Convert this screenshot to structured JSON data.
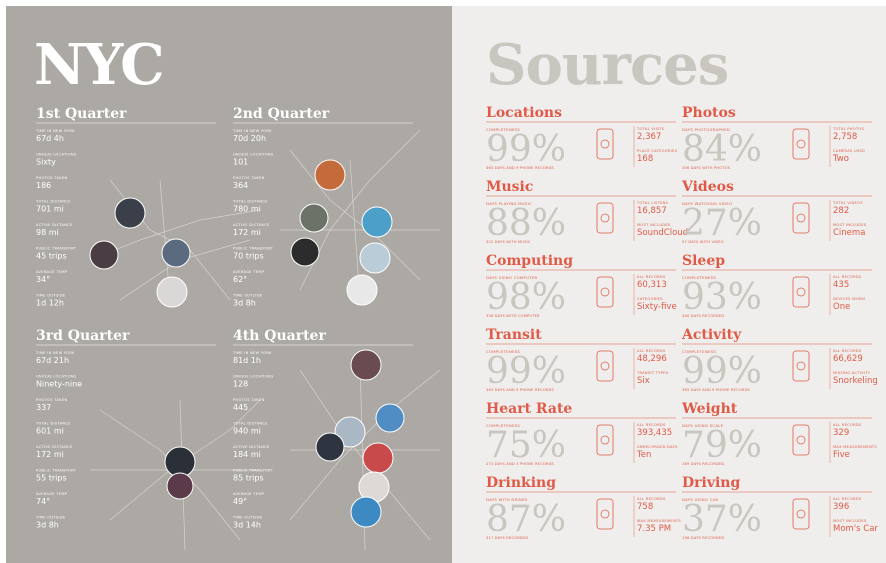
{
  "left": {
    "title": "NYC",
    "quarters": [
      {
        "title": "1st Quarter",
        "stats": [
          {
            "label": "TIME IN NEW YORK",
            "value": "67d 4h"
          },
          {
            "label": "UNIQUE LOCATIONS",
            "value": "Sixty"
          },
          {
            "label": "PHOTOS TAKEN",
            "value": "186"
          },
          {
            "label": "TOTAL DISTANCE",
            "value": "701 mi"
          },
          {
            "label": "ACTIVE DISTANCE",
            "value": "98 mi"
          },
          {
            "label": "PUBLIC TRANSPORT",
            "value": "45 trips"
          },
          {
            "label": "AVERAGE TEMP",
            "value": "34°"
          },
          {
            "label": "TIME OUTSIDE",
            "value": "1d 12h"
          }
        ]
      },
      {
        "title": "2nd Quarter",
        "stats": [
          {
            "label": "TIME IN NEW YORK",
            "value": "70d 20h"
          },
          {
            "label": "UNIQUE LOCATIONS",
            "value": "101"
          },
          {
            "label": "PHOTOS TAKEN",
            "value": "364"
          },
          {
            "label": "TOTAL DISTANCE",
            "value": "780 mi"
          },
          {
            "label": "ACTIVE DISTANCE",
            "value": "172 mi"
          },
          {
            "label": "PUBLIC TRANSPORT",
            "value": "70 trips"
          },
          {
            "label": "AVERAGE TEMP",
            "value": "62°"
          },
          {
            "label": "TIME OUTSIDE",
            "value": "3d 8h"
          }
        ]
      },
      {
        "title": "3rd Quarter",
        "stats": [
          {
            "label": "TIME IN NEW YORK",
            "value": "67d 21h"
          },
          {
            "label": "UNIQUE LOCATIONS",
            "value": "Ninety-nine"
          },
          {
            "label": "PHOTOS TAKEN",
            "value": "337"
          },
          {
            "label": "TOTAL DISTANCE",
            "value": "601 mi"
          },
          {
            "label": "ACTIVE DISTANCE",
            "value": "172 mi"
          },
          {
            "label": "PUBLIC TRANSPORT",
            "value": "55 trips"
          },
          {
            "label": "AVERAGE TEMP",
            "value": "74°"
          },
          {
            "label": "TIME OUTSIDE",
            "value": "3d 8h"
          }
        ]
      },
      {
        "title": "4th Quarter",
        "stats": [
          {
            "label": "TIME IN NEW YORK",
            "value": "81d 1h"
          },
          {
            "label": "UNIQUE LOCATIONS",
            "value": "128"
          },
          {
            "label": "PHOTOS TAKEN",
            "value": "445"
          },
          {
            "label": "TOTAL DISTANCE",
            "value": "940 mi"
          },
          {
            "label": "ACTIVE DISTANCE",
            "value": "184 mi"
          },
          {
            "label": "PUBLIC TRANSPORT",
            "value": "85 trips"
          },
          {
            "label": "AVERAGE TEMP",
            "value": "49°"
          },
          {
            "label": "TIME OUTSIDE",
            "value": "3d 14h"
          }
        ]
      }
    ]
  },
  "right": {
    "title": "Sources",
    "sources": [
      {
        "title": "Locations",
        "label": "COMPLETENESS",
        "percent": "99%",
        "note": "365 DAYS AND 9 PHONE RECORDS",
        "stats": [
          {
            "label": "TOTAL VISITS",
            "value": "2,367"
          },
          {
            "label": "PLACE CATEGORIES",
            "value": "168"
          }
        ]
      },
      {
        "title": "Photos",
        "label": "DAYS PHOTOGRAPHED",
        "percent": "84%",
        "note": "306 DAYS WITH PHOTOS",
        "stats": [
          {
            "label": "TOTAL PHOTOS",
            "value": "2,758"
          },
          {
            "label": "CAMERAS USED",
            "value": "Two"
          }
        ]
      },
      {
        "title": "Music",
        "label": "DAYS PLAYING MUSIC",
        "percent": "88%",
        "note": "322 DAYS WITH MUSIC",
        "stats": [
          {
            "label": "TOTAL LISTENS",
            "value": "16,857"
          },
          {
            "label": "MOST INCLUDES",
            "value": "SoundCloud"
          }
        ]
      },
      {
        "title": "Videos",
        "label": "DAYS WATCHING VIDEO",
        "percent": "27%",
        "note": "97 DAYS WITH VIDEO",
        "stats": [
          {
            "label": "TOTAL VIDEOS",
            "value": "282"
          },
          {
            "label": "MOST INCLUDES",
            "value": "Cinema"
          }
        ]
      },
      {
        "title": "Computing",
        "label": "DAYS USING COMPUTER",
        "percent": "98%",
        "note": "358 DAYS WITH COMPUTER",
        "stats": [
          {
            "label": "ALL RECORDS",
            "value": "60,313"
          },
          {
            "label": "CATEGORIES",
            "value": "Sixty-five"
          }
        ]
      },
      {
        "title": "Sleep",
        "label": "COMPLETENESS",
        "percent": "93%",
        "note": "340 DAYS RECORDED",
        "stats": [
          {
            "label": "ALL RECORDS",
            "value": "435"
          },
          {
            "label": "DEVICES WORN",
            "value": "One"
          }
        ]
      },
      {
        "title": "Transit",
        "label": "COMPLETENESS",
        "percent": "99%",
        "note": "365 DAYS AND 9 PHONE RECORDS",
        "stats": [
          {
            "label": "ALL RECORDS",
            "value": "48,296"
          },
          {
            "label": "TRANSIT TYPES",
            "value": "Six"
          }
        ]
      },
      {
        "title": "Activity",
        "label": "COMPLETENESS",
        "percent": "99%",
        "note": "365 DAYS AND 9 PHONE RECORDS",
        "stats": [
          {
            "label": "ALL RECORDS",
            "value": "66,629"
          },
          {
            "label": "MISSING ACTIVITY",
            "value": "Snorkeling"
          }
        ]
      },
      {
        "title": "Heart Rate",
        "label": "COMPLETENESS",
        "percent": "75%",
        "note": "273 DAYS AND 3 PHONE RECORDS",
        "stats": [
          {
            "label": "ALL RECORDS",
            "value": "393,435"
          },
          {
            "label": "UNRECORDED DAYS",
            "value": "Ten"
          }
        ]
      },
      {
        "title": "Weight",
        "label": "DAYS USING SCALE",
        "percent": "79%",
        "note": "289 DAYS RECORDED",
        "stats": [
          {
            "label": "ALL RECORDS",
            "value": "329"
          },
          {
            "label": "MAX MEASUREMENTS",
            "value": "Five"
          }
        ]
      },
      {
        "title": "Drinking",
        "label": "DAYS WITH DRINKS",
        "percent": "87%",
        "note": "317 DAYS RECORDED",
        "stats": [
          {
            "label": "ALL RECORDS",
            "value": "758"
          },
          {
            "label": "MAX MEASUREMENTS",
            "value": "7.35 PM"
          }
        ]
      },
      {
        "title": "Driving",
        "label": "DAYS USING CAR",
        "percent": "37%",
        "note": "136 DAYS RECORDED",
        "stats": [
          {
            "label": "ALL RECORDS",
            "value": "396"
          },
          {
            "label": "MOST INCLUDES",
            "value": "Mom's Car"
          }
        ]
      }
    ]
  }
}
